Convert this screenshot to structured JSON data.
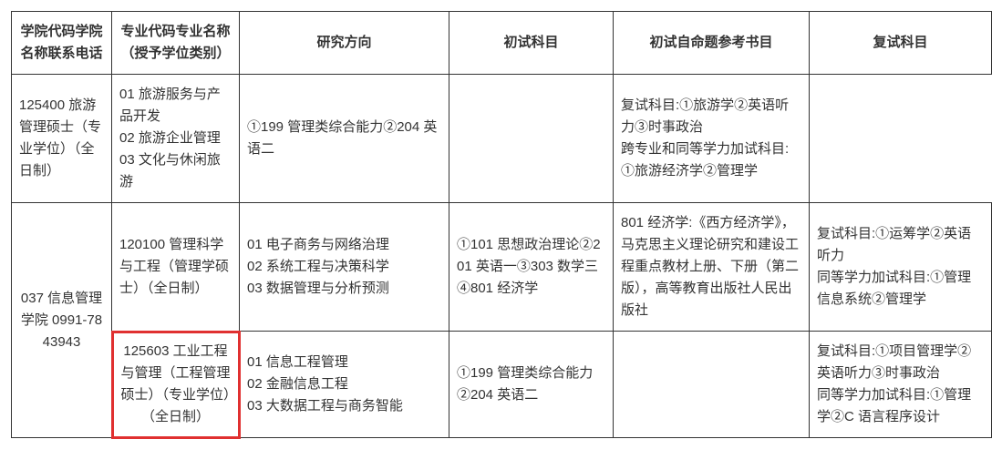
{
  "headers": [
    "学院代码学院名称联系电话",
    "专业代码专业名称（授予学位类别）",
    "研究方向",
    "初试科目",
    "初试自命题参考书目",
    "复试科目"
  ],
  "college_merged": "037 信息管理学院 0991-7843943",
  "rows": [
    {
      "major": "125400 旅游管理硕士（专业学位）（全日制）",
      "direction": "01 旅游服务与产品开发\n02 旅游企业管理\n03 文化与休闲旅游",
      "exam": "①199 管理类综合能力②204 英语二",
      "ref": "",
      "retest": "复试科目:①旅游学②英语听力③时事政治\n跨专业和同等学力加试科目:①旅游经济学②管理学"
    },
    {
      "major": "120100 管理科学与工程（管理学硕士）（全日制）",
      "direction": "01 电子商务与网络治理\n02 系统工程与决策科学\n03 数据管理与分析预测",
      "exam": "①101 思想政治理论②201 英语一③303 数学三④801 经济学",
      "ref": "801 经济学:《西方经济学》，马克思主义理论研究和建设工程重点教材上册、下册（第二版），高等教育出版社人民出版社",
      "retest": "复试科目:①运筹学②英语听力\n同等学力加试科目:①管理信息系统②管理学"
    },
    {
      "major": "125603 工业工程与管理（工程管理硕士）（专业学位）（全日制）",
      "direction": "01 信息工程管理\n02 金融信息工程\n03 大数据工程与商务智能",
      "exam": "①199 管理类综合能力②204 英语二",
      "ref": "",
      "retest": "复试科目:①项目管理学②英语听力③时事政治\n同等学力加试科目:①管理学②C 语言程序设计"
    }
  ],
  "highlight": {
    "row_index": 2,
    "col_key": "major",
    "color": "#e03030"
  }
}
